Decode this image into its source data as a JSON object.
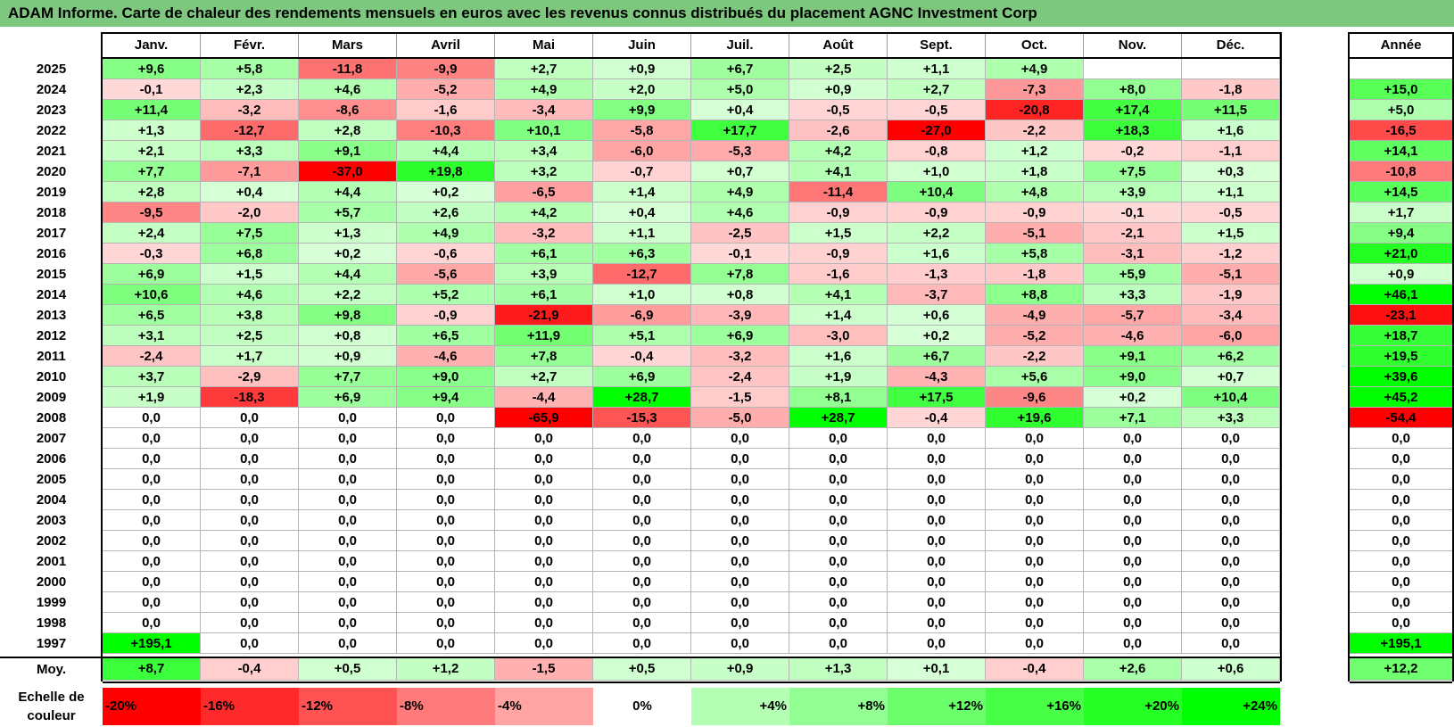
{
  "title": "ADAM Informe. Carte de chaleur des rendements mensuels en euros avec les revenus connus distribués du placement AGNC Investment Corp",
  "colors": {
    "title_bg": "#7ec77f",
    "positive": "#00ff00",
    "negative": "#ff0000",
    "neutral": "#ffffff"
  },
  "chart_data": {
    "type": "heatmap",
    "title": "ADAM Informe. Carte de chaleur des rendements mensuels en euros avec les revenus connus distribués du placement AGNC Investment Corp",
    "months": [
      "Janv.",
      "Févr.",
      "Mars",
      "Avril",
      "Mai",
      "Juin",
      "Juil.",
      "Août",
      "Sept.",
      "Oct.",
      "Nov.",
      "Déc."
    ],
    "year_header": "Année",
    "rows": [
      {
        "year": "2025",
        "m": [
          "+9,6",
          "+5,8",
          "-11,8",
          "-9,9",
          "+2,7",
          "+0,9",
          "+6,7",
          "+2,5",
          "+1,1",
          "+4,9",
          "",
          ""
        ],
        "y": ""
      },
      {
        "year": "2024",
        "m": [
          "-0,1",
          "+2,3",
          "+4,6",
          "-5,2",
          "+4,9",
          "+2,0",
          "+5,0",
          "+0,9",
          "+2,7",
          "-7,3",
          "+8,0",
          "-1,8"
        ],
        "y": "+15,0"
      },
      {
        "year": "2023",
        "m": [
          "+11,4",
          "-3,2",
          "-8,6",
          "-1,6",
          "-3,4",
          "+9,9",
          "+0,4",
          "-0,5",
          "-0,5",
          "-20,8",
          "+17,4",
          "+11,5"
        ],
        "y": "+5,0"
      },
      {
        "year": "2022",
        "m": [
          "+1,3",
          "-12,7",
          "+2,8",
          "-10,3",
          "+10,1",
          "-5,8",
          "+17,7",
          "-2,6",
          "-27,0",
          "-2,2",
          "+18,3",
          "+1,6"
        ],
        "y": "-16,5"
      },
      {
        "year": "2021",
        "m": [
          "+2,1",
          "+3,3",
          "+9,1",
          "+4,4",
          "+3,4",
          "-6,0",
          "-5,3",
          "+4,2",
          "-0,8",
          "+1,2",
          "-0,2",
          "-1,1"
        ],
        "y": "+14,1"
      },
      {
        "year": "2020",
        "m": [
          "+7,7",
          "-7,1",
          "-37,0",
          "+19,8",
          "+3,2",
          "-0,7",
          "+0,7",
          "+4,1",
          "+1,0",
          "+1,8",
          "+7,5",
          "+0,3"
        ],
        "y": "-10,8"
      },
      {
        "year": "2019",
        "m": [
          "+2,8",
          "+0,4",
          "+4,4",
          "+0,2",
          "-6,5",
          "+1,4",
          "+4,9",
          "-11,4",
          "+10,4",
          "+4,8",
          "+3,9",
          "+1,1"
        ],
        "y": "+14,5"
      },
      {
        "year": "2018",
        "m": [
          "-9,5",
          "-2,0",
          "+5,7",
          "+2,6",
          "+4,2",
          "+0,4",
          "+4,6",
          "-0,9",
          "-0,9",
          "-0,9",
          "-0,1",
          "-0,5"
        ],
        "y": "+1,7"
      },
      {
        "year": "2017",
        "m": [
          "+2,4",
          "+7,5",
          "+1,3",
          "+4,9",
          "-3,2",
          "+1,1",
          "-2,5",
          "+1,5",
          "+2,2",
          "-5,1",
          "-2,1",
          "+1,5"
        ],
        "y": "+9,4"
      },
      {
        "year": "2016",
        "m": [
          "-0,3",
          "+6,8",
          "+0,2",
          "-0,6",
          "+6,1",
          "+6,3",
          "-0,1",
          "-0,9",
          "+1,6",
          "+5,8",
          "-3,1",
          "-1,2"
        ],
        "y": "+21,0"
      },
      {
        "year": "2015",
        "m": [
          "+6,9",
          "+1,5",
          "+4,4",
          "-5,6",
          "+3,9",
          "-12,7",
          "+7,8",
          "-1,6",
          "-1,3",
          "-1,8",
          "+5,9",
          "-5,1"
        ],
        "y": "+0,9"
      },
      {
        "year": "2014",
        "m": [
          "+10,6",
          "+4,6",
          "+2,2",
          "+5,2",
          "+6,1",
          "+1,0",
          "+0,8",
          "+4,1",
          "-3,7",
          "+8,8",
          "+3,3",
          "-1,9"
        ],
        "y": "+46,1"
      },
      {
        "year": "2013",
        "m": [
          "+6,5",
          "+3,8",
          "+9,8",
          "-0,9",
          "-21,9",
          "-6,9",
          "-3,9",
          "+1,4",
          "+0,6",
          "-4,9",
          "-5,7",
          "-3,4"
        ],
        "y": "-23,1"
      },
      {
        "year": "2012",
        "m": [
          "+3,1",
          "+2,5",
          "+0,8",
          "+6,5",
          "+11,9",
          "+5,1",
          "+6,9",
          "-3,0",
          "+0,2",
          "-5,2",
          "-4,6",
          "-6,0"
        ],
        "y": "+18,7"
      },
      {
        "year": "2011",
        "m": [
          "-2,4",
          "+1,7",
          "+0,9",
          "-4,6",
          "+7,8",
          "-0,4",
          "-3,2",
          "+1,6",
          "+6,7",
          "-2,2",
          "+9,1",
          "+6,2"
        ],
        "y": "+19,5"
      },
      {
        "year": "2010",
        "m": [
          "+3,7",
          "-2,9",
          "+7,7",
          "+9,0",
          "+2,7",
          "+6,9",
          "-2,4",
          "+1,9",
          "-4,3",
          "+5,6",
          "+9,0",
          "+0,7"
        ],
        "y": "+39,6"
      },
      {
        "year": "2009",
        "m": [
          "+1,9",
          "-18,3",
          "+6,9",
          "+9,4",
          "-4,4",
          "+28,7",
          "-1,5",
          "+8,1",
          "+17,5",
          "-9,6",
          "+0,2",
          "+10,4"
        ],
        "y": "+45,2"
      },
      {
        "year": "2008",
        "m": [
          "0,0",
          "0,0",
          "0,0",
          "0,0",
          "-65,9",
          "-15,3",
          "-5,0",
          "+28,7",
          "-0,4",
          "+19,6",
          "+7,1",
          "+3,3"
        ],
        "y": "-54,4"
      },
      {
        "year": "2007",
        "m": [
          "0,0",
          "0,0",
          "0,0",
          "0,0",
          "0,0",
          "0,0",
          "0,0",
          "0,0",
          "0,0",
          "0,0",
          "0,0",
          "0,0"
        ],
        "y": "0,0"
      },
      {
        "year": "2006",
        "m": [
          "0,0",
          "0,0",
          "0,0",
          "0,0",
          "0,0",
          "0,0",
          "0,0",
          "0,0",
          "0,0",
          "0,0",
          "0,0",
          "0,0"
        ],
        "y": "0,0"
      },
      {
        "year": "2005",
        "m": [
          "0,0",
          "0,0",
          "0,0",
          "0,0",
          "0,0",
          "0,0",
          "0,0",
          "0,0",
          "0,0",
          "0,0",
          "0,0",
          "0,0"
        ],
        "y": "0,0"
      },
      {
        "year": "2004",
        "m": [
          "0,0",
          "0,0",
          "0,0",
          "0,0",
          "0,0",
          "0,0",
          "0,0",
          "0,0",
          "0,0",
          "0,0",
          "0,0",
          "0,0"
        ],
        "y": "0,0"
      },
      {
        "year": "2003",
        "m": [
          "0,0",
          "0,0",
          "0,0",
          "0,0",
          "0,0",
          "0,0",
          "0,0",
          "0,0",
          "0,0",
          "0,0",
          "0,0",
          "0,0"
        ],
        "y": "0,0"
      },
      {
        "year": "2002",
        "m": [
          "0,0",
          "0,0",
          "0,0",
          "0,0",
          "0,0",
          "0,0",
          "0,0",
          "0,0",
          "0,0",
          "0,0",
          "0,0",
          "0,0"
        ],
        "y": "0,0"
      },
      {
        "year": "2001",
        "m": [
          "0,0",
          "0,0",
          "0,0",
          "0,0",
          "0,0",
          "0,0",
          "0,0",
          "0,0",
          "0,0",
          "0,0",
          "0,0",
          "0,0"
        ],
        "y": "0,0"
      },
      {
        "year": "2000",
        "m": [
          "0,0",
          "0,0",
          "0,0",
          "0,0",
          "0,0",
          "0,0",
          "0,0",
          "0,0",
          "0,0",
          "0,0",
          "0,0",
          "0,0"
        ],
        "y": "0,0"
      },
      {
        "year": "1999",
        "m": [
          "0,0",
          "0,0",
          "0,0",
          "0,0",
          "0,0",
          "0,0",
          "0,0",
          "0,0",
          "0,0",
          "0,0",
          "0,0",
          "0,0"
        ],
        "y": "0,0"
      },
      {
        "year": "1998",
        "m": [
          "0,0",
          "0,0",
          "0,0",
          "0,0",
          "0,0",
          "0,0",
          "0,0",
          "0,0",
          "0,0",
          "0,0",
          "0,0",
          "0,0"
        ],
        "y": "0,0"
      },
      {
        "year": "1997",
        "m": [
          "+195,1",
          "0,0",
          "0,0",
          "0,0",
          "0,0",
          "0,0",
          "0,0",
          "0,0",
          "0,0",
          "0,0",
          "0,0",
          "0,0"
        ],
        "y": "+195,1"
      }
    ],
    "average": {
      "label": "Moy.",
      "m": [
        "+8,7",
        "-0,4",
        "+0,5",
        "+1,2",
        "-1,5",
        "+0,5",
        "+0,9",
        "+1,3",
        "+0,1",
        "-0,4",
        "+2,6",
        "+0,6"
      ],
      "y": "+12,2"
    },
    "scale_label": "Echelle de couleur",
    "scale": [
      {
        "label": "-20%",
        "v": -20
      },
      {
        "label": "-16%",
        "v": -16
      },
      {
        "label": "-12%",
        "v": -12
      },
      {
        "label": "-8%",
        "v": -8
      },
      {
        "label": "-4%",
        "v": -4
      },
      {
        "label": "0%",
        "v": 0
      },
      {
        "label": "+4%",
        "v": 4
      },
      {
        "label": "+8%",
        "v": 8
      },
      {
        "label": "+12%",
        "v": 12
      },
      {
        "label": "+16%",
        "v": 16
      },
      {
        "label": "+20%",
        "v": 20
      },
      {
        "label": "+24%",
        "v": 24
      }
    ]
  }
}
